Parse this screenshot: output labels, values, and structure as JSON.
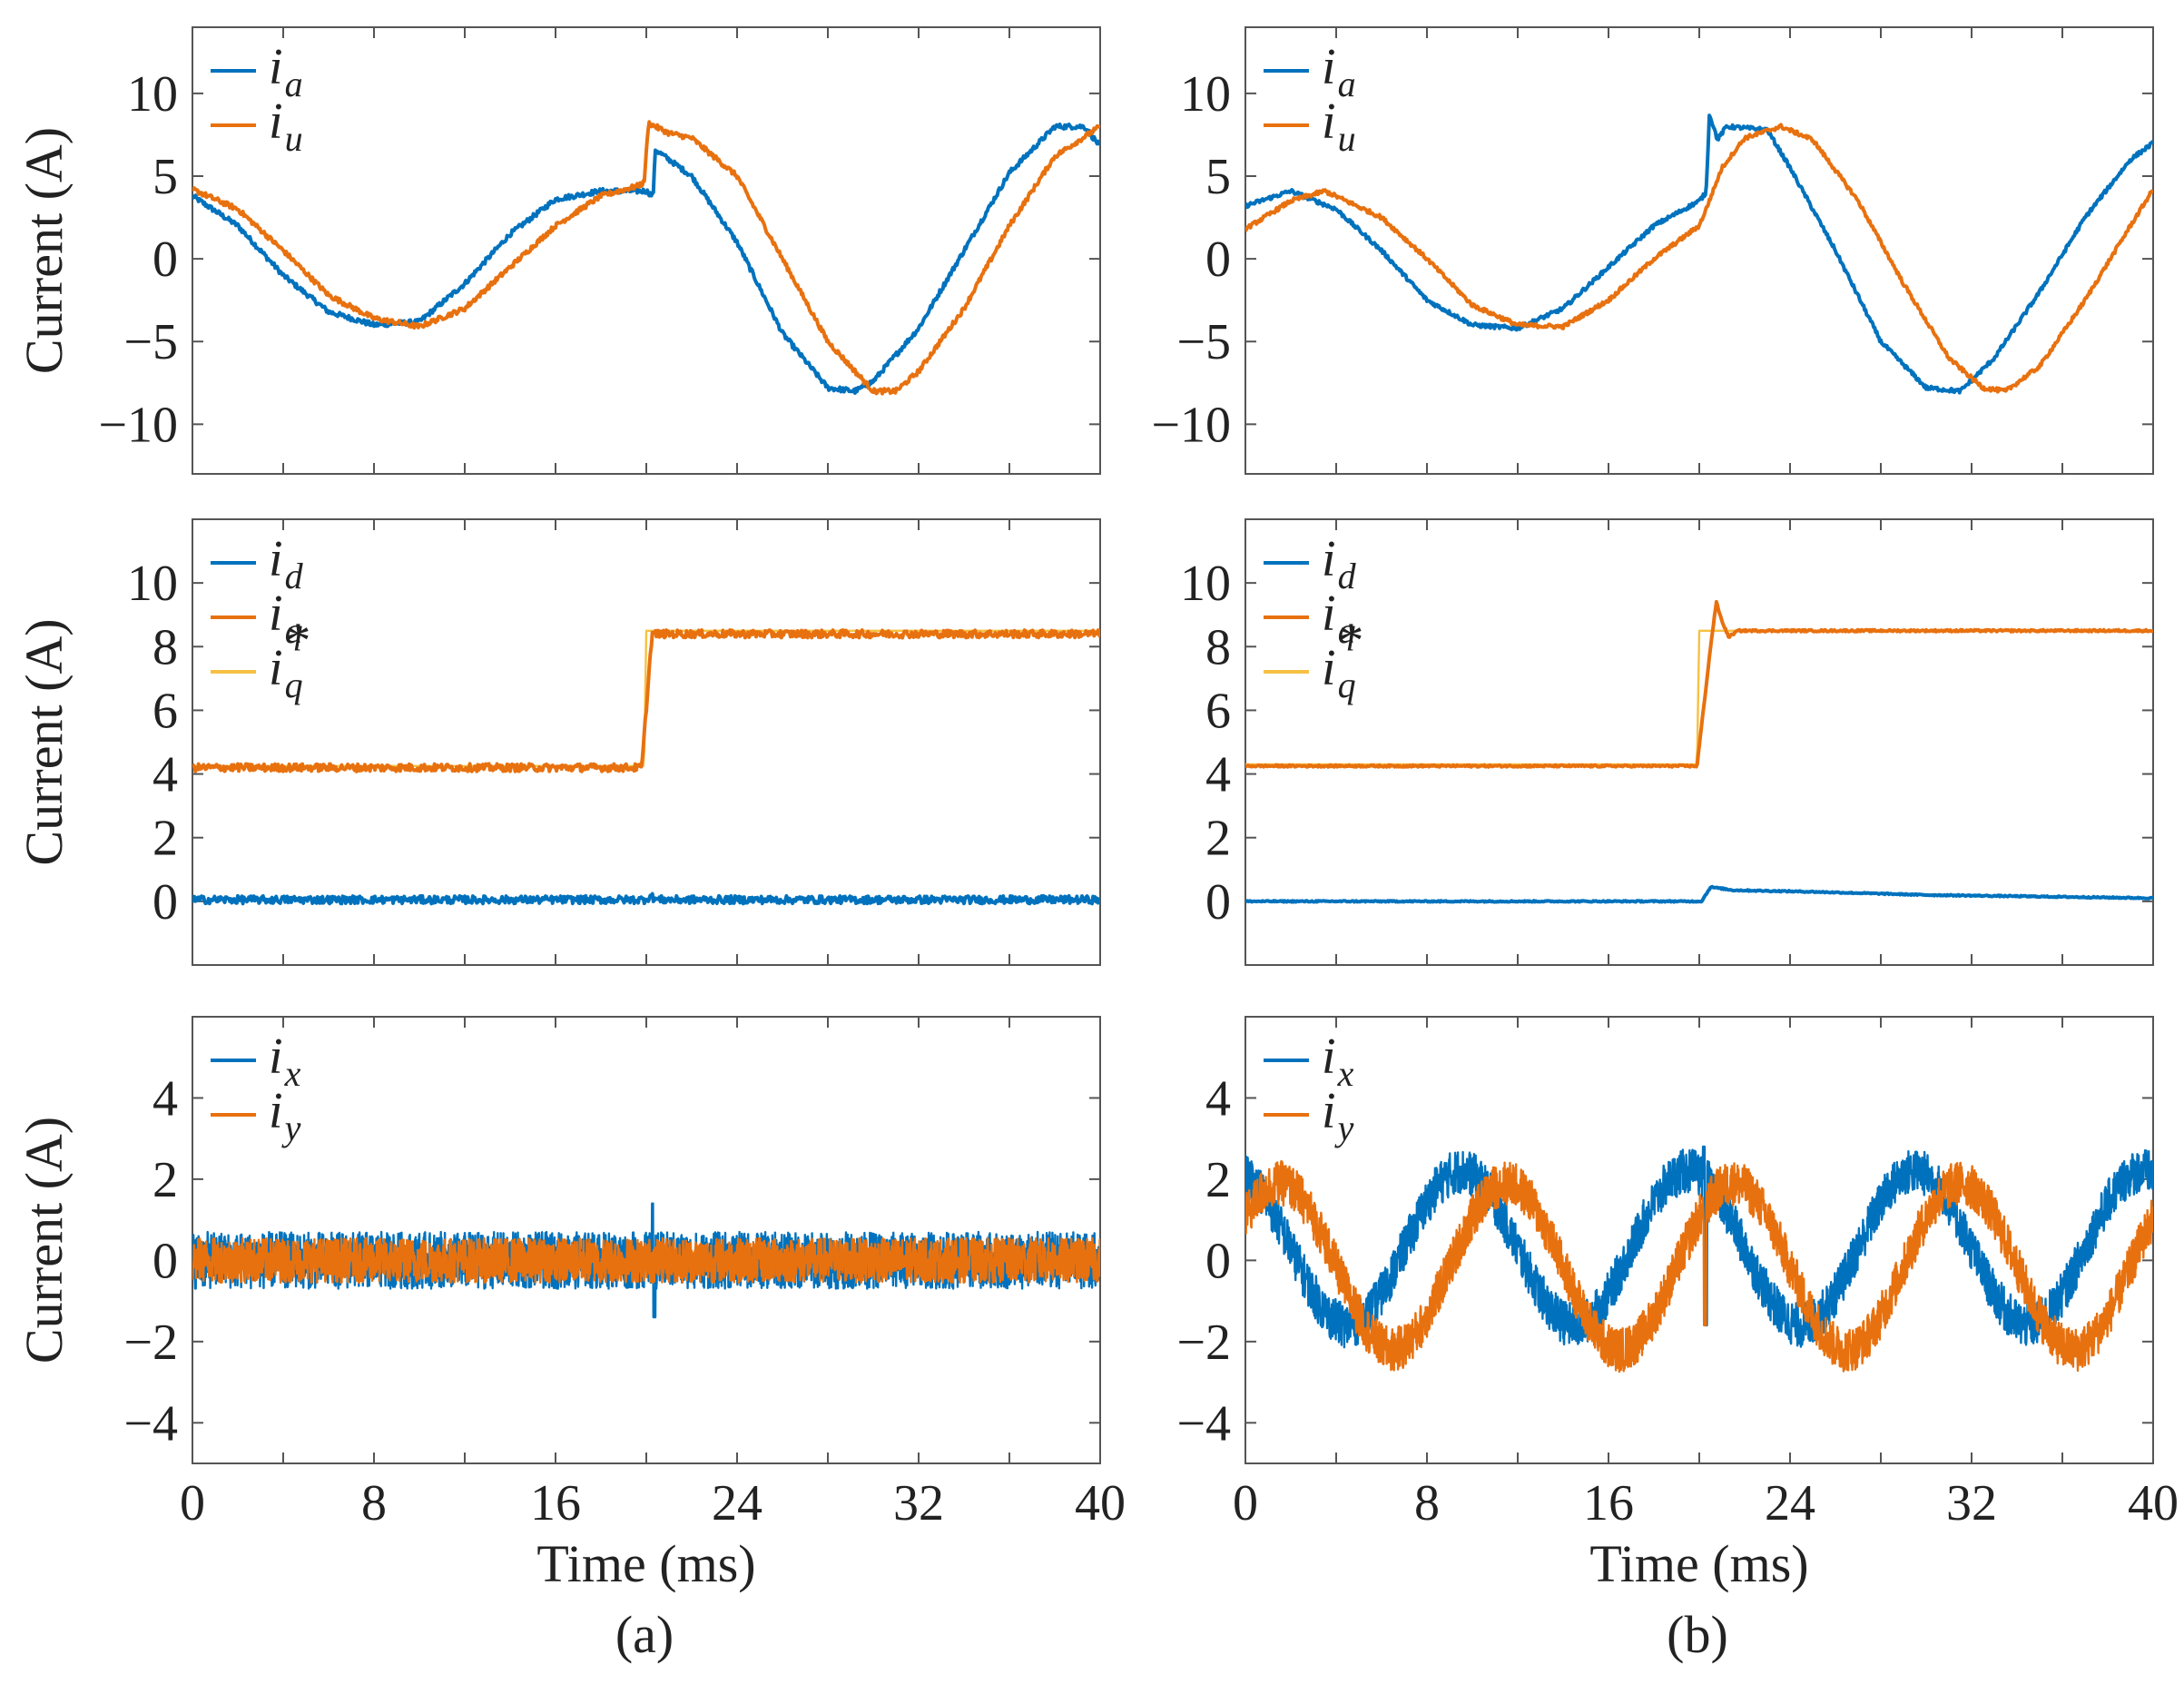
{
  "colors": {
    "blue": "#0072BD",
    "orange": "#E8710F",
    "yellow": "#F6C143",
    "axis": "#555555"
  },
  "chart_data": [
    {
      "id": "a1",
      "column": "a",
      "row": 1,
      "type": "line",
      "ylabel": "Current (A)",
      "xlim": [
        0,
        40
      ],
      "ylim": [
        -13,
        14
      ],
      "yticks": [
        -10,
        -5,
        0,
        5,
        10
      ],
      "yticklabels": [
        "−10",
        "−5",
        "0",
        "5",
        "10"
      ],
      "legend": [
        {
          "base": "i",
          "sub": "a",
          "sup": "",
          "color": "blue"
        },
        {
          "base": "i",
          "sub": "u",
          "sup": "",
          "color": "orange"
        }
      ],
      "series": [
        {
          "name": "i_a",
          "color": "blue",
          "noise": 0.15,
          "points": [
            [
              0,
              3.8
            ],
            [
              2,
              2.0
            ],
            [
              4,
              -1.0
            ],
            [
              6,
              -3.2
            ],
            [
              8,
              -4.0
            ],
            [
              10,
              -3.8
            ],
            [
              12,
              -1.5
            ],
            [
              14,
              1.5
            ],
            [
              16,
              3.6
            ],
            [
              18,
              4.1
            ],
            [
              20,
              4.1
            ],
            [
              20.3,
              3.8
            ],
            [
              20.4,
              6.6
            ],
            [
              22,
              5.0
            ],
            [
              24,
              1.0
            ],
            [
              26,
              -4.5
            ],
            [
              28,
              -7.8
            ],
            [
              29.2,
              -8.0
            ],
            [
              30,
              -7.4
            ],
            [
              32,
              -4.2
            ],
            [
              34,
              0.5
            ],
            [
              36,
              5.2
            ],
            [
              38,
              8.0
            ],
            [
              39.3,
              8.0
            ],
            [
              40,
              6.8
            ]
          ]
        },
        {
          "name": "i_u",
          "color": "orange",
          "noise": 0.15,
          "points": [
            [
              0,
              4.2
            ],
            [
              2,
              3.0
            ],
            [
              4,
              0.5
            ],
            [
              6,
              -2.2
            ],
            [
              8,
              -3.6
            ],
            [
              10,
              -4.1
            ],
            [
              12,
              -3.0
            ],
            [
              14,
              -0.5
            ],
            [
              16,
              2.0
            ],
            [
              18,
              3.8
            ],
            [
              19.6,
              4.4
            ],
            [
              19.9,
              4.6
            ],
            [
              20.1,
              8.2
            ],
            [
              21,
              7.6
            ],
            [
              22,
              7.3
            ],
            [
              24,
              5.0
            ],
            [
              26,
              0.0
            ],
            [
              28,
              -5.0
            ],
            [
              30,
              -8.0
            ],
            [
              31,
              -8.0
            ],
            [
              32,
              -6.8
            ],
            [
              34,
              -3.0
            ],
            [
              36,
              2.0
            ],
            [
              38,
              6.2
            ],
            [
              40,
              8.0
            ]
          ]
        }
      ]
    },
    {
      "id": "b1",
      "column": "b",
      "row": 1,
      "type": "line",
      "ylabel": "",
      "xlim": [
        0,
        40
      ],
      "ylim": [
        -13,
        14
      ],
      "yticks": [
        -10,
        -5,
        0,
        5,
        10
      ],
      "yticklabels": [
        "−10",
        "−5",
        "0",
        "5",
        "10"
      ],
      "legend": [
        {
          "base": "i",
          "sub": "a",
          "sup": "",
          "color": "blue"
        },
        {
          "base": "i",
          "sub": "u",
          "sup": "",
          "color": "orange"
        }
      ],
      "series": [
        {
          "name": "i_a",
          "color": "blue",
          "noise": 0.12,
          "points": [
            [
              0,
              3.2
            ],
            [
              2,
              4.1
            ],
            [
              4,
              3.0
            ],
            [
              6,
              0.5
            ],
            [
              8,
              -2.5
            ],
            [
              10,
              -4.0
            ],
            [
              12,
              -4.2
            ],
            [
              14,
              -3.0
            ],
            [
              16,
              -0.5
            ],
            [
              18,
              2.0
            ],
            [
              20,
              3.5
            ],
            [
              20.3,
              4.0
            ],
            [
              20.45,
              8.8
            ],
            [
              20.8,
              7.2
            ],
            [
              21.2,
              8.0
            ],
            [
              23,
              7.8
            ],
            [
              24,
              5.5
            ],
            [
              26,
              0.5
            ],
            [
              28,
              -5.0
            ],
            [
              30,
              -7.8
            ],
            [
              31.5,
              -8.0
            ],
            [
              33,
              -6.0
            ],
            [
              35,
              -2.0
            ],
            [
              37,
              2.5
            ],
            [
              39,
              6.0
            ],
            [
              40,
              7.0
            ]
          ]
        },
        {
          "name": "i_u",
          "color": "orange",
          "noise": 0.12,
          "points": [
            [
              0,
              1.8
            ],
            [
              2,
              3.5
            ],
            [
              3.5,
              4.1
            ],
            [
              6,
              2.5
            ],
            [
              8,
              0.0
            ],
            [
              10,
              -2.8
            ],
            [
              12,
              -4.0
            ],
            [
              14,
              -4.1
            ],
            [
              16,
              -2.5
            ],
            [
              18,
              0.0
            ],
            [
              20,
              2.0
            ],
            [
              20.3,
              3.0
            ],
            [
              21,
              5.5
            ],
            [
              22,
              7.3
            ],
            [
              23.6,
              8.0
            ],
            [
              25,
              7.2
            ],
            [
              27,
              3.5
            ],
            [
              29,
              -1.5
            ],
            [
              31,
              -6.0
            ],
            [
              32.5,
              -7.8
            ],
            [
              33.5,
              -8.0
            ],
            [
              35,
              -6.5
            ],
            [
              37,
              -2.5
            ],
            [
              39,
              2.0
            ],
            [
              40,
              4.2
            ]
          ]
        }
      ]
    },
    {
      "id": "a2",
      "column": "a",
      "row": 2,
      "type": "line",
      "ylabel": "Current (A)",
      "xlim": [
        0,
        40
      ],
      "ylim": [
        -2,
        12
      ],
      "yticks": [
        0,
        2,
        4,
        6,
        8,
        10
      ],
      "yticklabels": [
        "0",
        "2",
        "4",
        "6",
        "8",
        "10"
      ],
      "legend": [
        {
          "base": "i",
          "sub": "d",
          "sup": "",
          "color": "blue"
        },
        {
          "base": "i",
          "sub": "q",
          "sup": "",
          "color": "orange"
        },
        {
          "base": "i",
          "sub": "q",
          "sup": "*",
          "color": "yellow"
        }
      ],
      "series": [
        {
          "name": "i_q*",
          "color": "yellow",
          "noise": 0,
          "points": [
            [
              0,
              4.25
            ],
            [
              19.9,
              4.25
            ],
            [
              20,
              8.5
            ],
            [
              40,
              8.5
            ]
          ]
        },
        {
          "name": "i_q",
          "color": "orange",
          "noise": 0.12,
          "points": [
            [
              0,
              4.2
            ],
            [
              19.8,
              4.2
            ],
            [
              20.25,
              8.4
            ],
            [
              40,
              8.4
            ]
          ]
        },
        {
          "name": "i_d",
          "color": "blue",
          "noise": 0.12,
          "points": [
            [
              0,
              0.05
            ],
            [
              19.9,
              0.05
            ],
            [
              20.2,
              0.15
            ],
            [
              20.5,
              0.05
            ],
            [
              40,
              0.05
            ]
          ]
        }
      ]
    },
    {
      "id": "b2",
      "column": "b",
      "row": 2,
      "type": "line",
      "ylabel": "",
      "xlim": [
        0,
        40
      ],
      "ylim": [
        -2,
        12
      ],
      "yticks": [
        0,
        2,
        4,
        6,
        8,
        10
      ],
      "yticklabels": [
        "0",
        "2",
        "4",
        "6",
        "8",
        "10"
      ],
      "legend": [
        {
          "base": "i",
          "sub": "d",
          "sup": "",
          "color": "blue"
        },
        {
          "base": "i",
          "sub": "q",
          "sup": "",
          "color": "orange"
        },
        {
          "base": "i",
          "sub": "q",
          "sup": "*",
          "color": "yellow"
        }
      ],
      "series": [
        {
          "name": "i_q*",
          "color": "yellow",
          "noise": 0,
          "points": [
            [
              0,
              4.3
            ],
            [
              19.9,
              4.3
            ],
            [
              20.0,
              8.5
            ],
            [
              40,
              8.5
            ]
          ]
        },
        {
          "name": "i_q",
          "color": "orange",
          "noise": 0.03,
          "points": [
            [
              0,
              4.25
            ],
            [
              19.9,
              4.25
            ],
            [
              20.5,
              8.0
            ],
            [
              20.75,
              9.4
            ],
            [
              21.0,
              8.8
            ],
            [
              21.3,
              8.3
            ],
            [
              21.7,
              8.5
            ],
            [
              40,
              8.5
            ]
          ]
        },
        {
          "name": "i_d",
          "color": "blue",
          "noise": 0.02,
          "points": [
            [
              0,
              0.0
            ],
            [
              18,
              0.0
            ],
            [
              20.1,
              0.0
            ],
            [
              20.5,
              0.45
            ],
            [
              21.5,
              0.35
            ],
            [
              25,
              0.3
            ],
            [
              30,
              0.2
            ],
            [
              40,
              0.1
            ]
          ]
        }
      ]
    },
    {
      "id": "a3",
      "column": "a",
      "row": 3,
      "type": "line",
      "ylabel": "Current (A)",
      "xlim": [
        0,
        40
      ],
      "ylim": [
        -5,
        6
      ],
      "yticks": [
        -4,
        -2,
        0,
        2,
        4
      ],
      "yticklabels": [
        "−4",
        "−2",
        "0",
        "2",
        "4"
      ],
      "xticks": [
        0,
        8,
        16,
        24,
        32,
        40
      ],
      "xticklabels": [
        "0",
        "8",
        "16",
        "24",
        "32",
        "40"
      ],
      "xlabel": "Time (ms)",
      "legend": [
        {
          "base": "i",
          "sub": "x",
          "sup": "",
          "color": "blue"
        },
        {
          "base": "i",
          "sub": "y",
          "sup": "",
          "color": "orange"
        }
      ],
      "series": [
        {
          "name": "i_x",
          "color": "blue",
          "band": 0.7,
          "points": [
            [
              0,
              0.0
            ],
            [
              40,
              0.0
            ]
          ],
          "spikes": [
            [
              20.3,
              1.4
            ],
            [
              20.35,
              -1.4
            ]
          ]
        },
        {
          "name": "i_y",
          "color": "orange",
          "band": 0.55,
          "points": [
            [
              0,
              0.0
            ],
            [
              40,
              0.0
            ]
          ]
        }
      ]
    },
    {
      "id": "b3",
      "column": "b",
      "row": 3,
      "type": "line",
      "ylabel": "",
      "xlim": [
        0,
        40
      ],
      "ylim": [
        -5,
        6
      ],
      "yticks": [
        -4,
        -2,
        0,
        2,
        4
      ],
      "yticklabels": [
        "−4",
        "−2",
        "0",
        "2",
        "4"
      ],
      "xticks": [
        0,
        8,
        16,
        24,
        32,
        40
      ],
      "xticklabels": [
        "0",
        "8",
        "16",
        "24",
        "32",
        "40"
      ],
      "xlabel": "Time (ms)",
      "legend": [
        {
          "base": "i",
          "sub": "x",
          "sup": "",
          "color": "blue"
        },
        {
          "base": "i",
          "sub": "y",
          "sup": "",
          "color": "orange"
        }
      ],
      "series": [
        {
          "name": "i_x",
          "color": "blue",
          "wave": {
            "period": 10,
            "peak": 9.5,
            "lo": -1.6,
            "hi": 2.2
          },
          "band": 0.55,
          "spikes": [
            [
              20.2,
              2.8
            ],
            [
              20.3,
              -1.6
            ]
          ]
        },
        {
          "name": "i_y",
          "color": "orange",
          "wave": {
            "period": 10,
            "peak": 1.5,
            "lo": -2.2,
            "hi": 1.9
          },
          "band": 0.55,
          "spikes": [
            [
              20.25,
              -1.6
            ]
          ]
        }
      ]
    }
  ],
  "captions": {
    "a": "(a)",
    "b": "(b)"
  }
}
